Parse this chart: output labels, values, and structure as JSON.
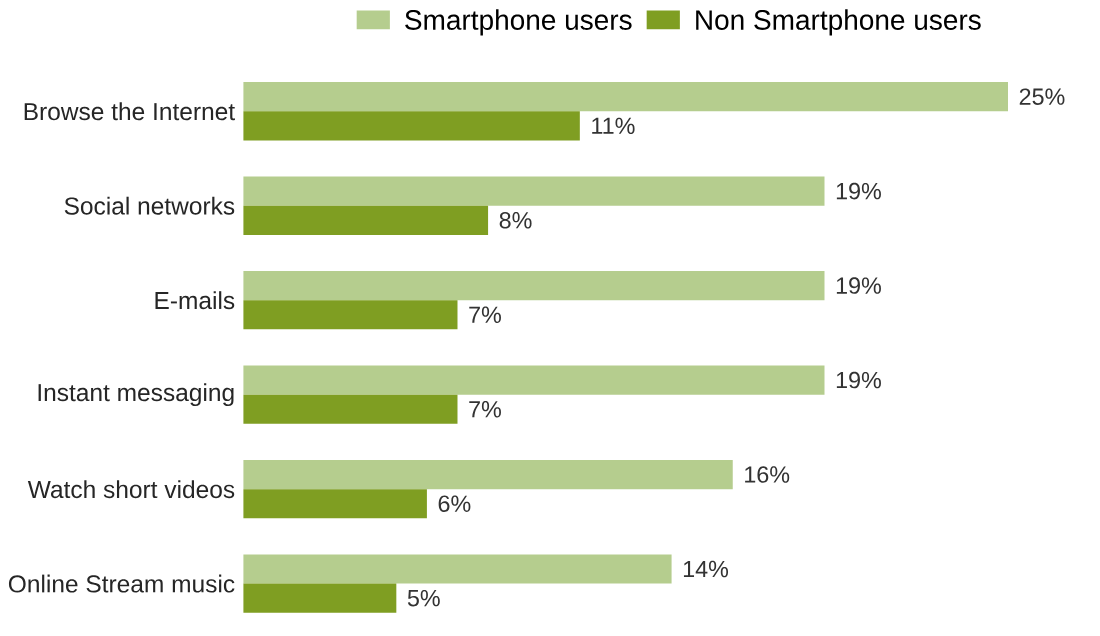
{
  "chart_data": {
    "type": "bar",
    "orientation": "horizontal",
    "legend": "top",
    "categories": [
      "Browse the Internet",
      "Social networks",
      "E-mails",
      "Instant messaging",
      "Watch short videos",
      "Online Stream music"
    ],
    "series": [
      {
        "name": "Smartphone users",
        "color": "#b5cd8e",
        "values": [
          25,
          19,
          19,
          19,
          16,
          14
        ],
        "value_labels": [
          "25%",
          "19%",
          "19%",
          "19%",
          "16%",
          "14%"
        ]
      },
      {
        "name": "Non Smartphone users",
        "color": "#7f9e22",
        "values": [
          11,
          8,
          7,
          7,
          6,
          5
        ],
        "value_labels": [
          "11%",
          "8%",
          "7%",
          "7%",
          "6%",
          "5%"
        ]
      }
    ]
  }
}
